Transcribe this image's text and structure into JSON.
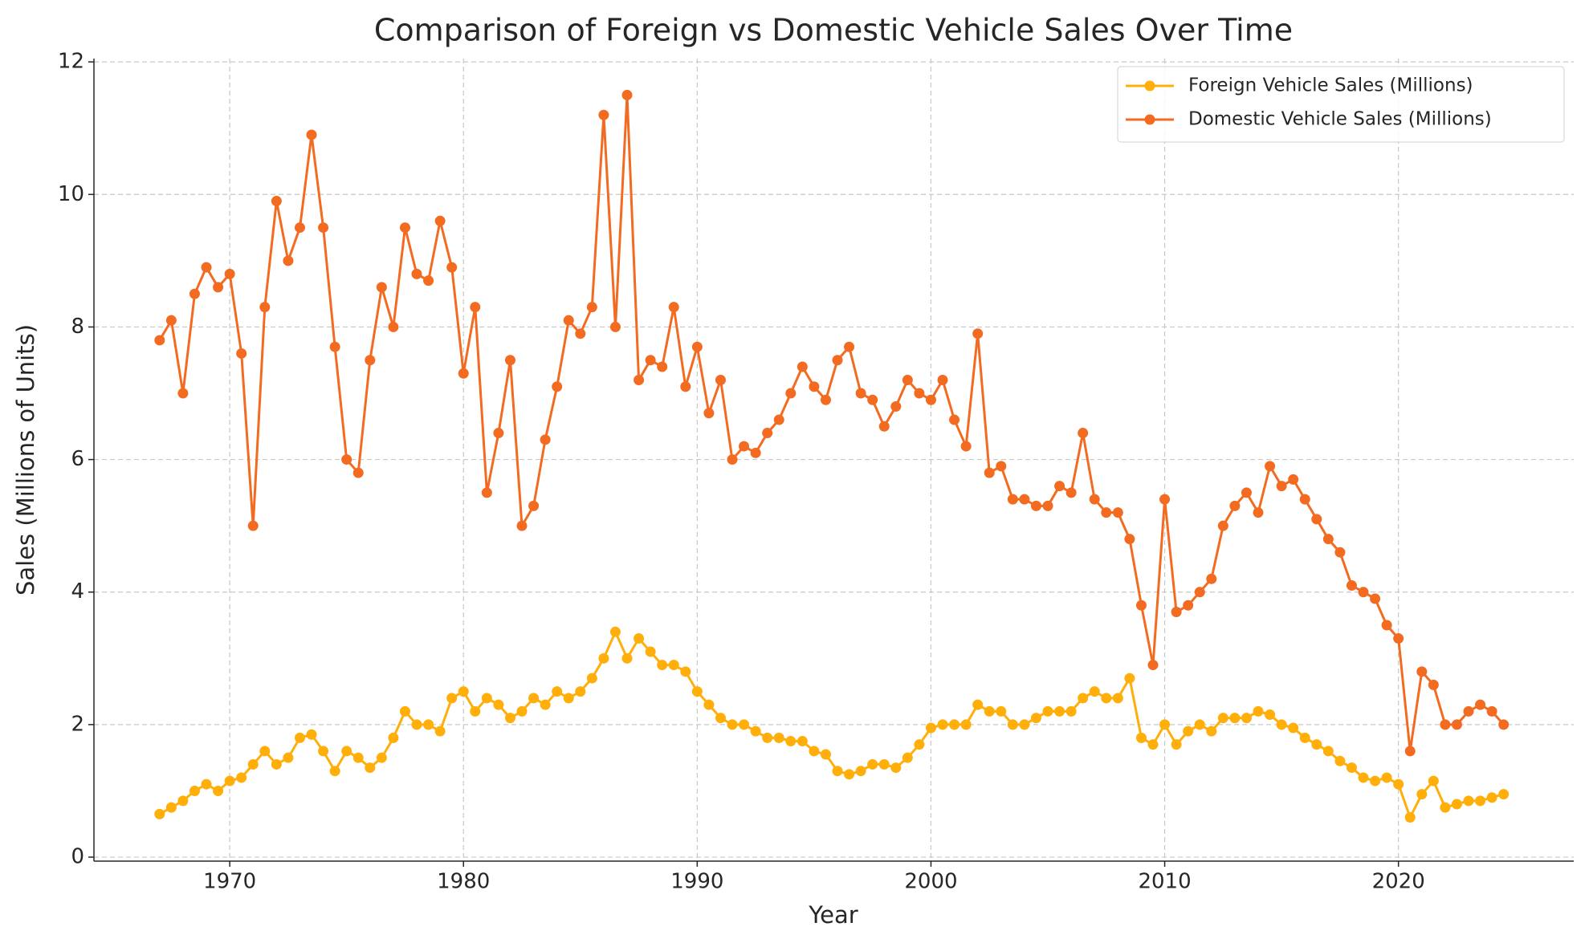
{
  "chart_data": {
    "type": "line",
    "title": "Comparison of Foreign vs Domestic Vehicle Sales Over Time",
    "x_label": "Year",
    "y_label": "Sales (Millions of Units)",
    "x": [
      1967,
      1967.5,
      1968,
      1968.5,
      1969,
      1969.5,
      1970,
      1970.5,
      1971,
      1971.5,
      1972,
      1972.5,
      1973,
      1973.5,
      1974,
      1974.5,
      1975,
      1975.5,
      1976,
      1976.5,
      1977,
      1977.5,
      1978,
      1978.5,
      1979,
      1979.5,
      1980,
      1980.5,
      1981,
      1981.5,
      1982,
      1982.5,
      1983,
      1983.5,
      1984,
      1984.5,
      1985,
      1985.5,
      1986,
      1986.5,
      1987,
      1987.5,
      1988,
      1988.5,
      1989,
      1989.5,
      1990,
      1990.5,
      1991,
      1991.5,
      1992,
      1992.5,
      1993,
      1993.5,
      1994,
      1994.5,
      1995,
      1995.5,
      1996,
      1996.5,
      1997,
      1997.5,
      1998,
      1998.5,
      1999,
      1999.5,
      2000,
      2000.5,
      2001,
      2001.5,
      2002,
      2002.5,
      2003,
      2003.5,
      2004,
      2004.5,
      2005,
      2005.5,
      2006,
      2006.5,
      2007,
      2007.5,
      2008,
      2008.5,
      2009,
      2009.5,
      2010,
      2010.5,
      2011,
      2011.5,
      2012,
      2012.5,
      2013,
      2013.5,
      2014,
      2014.5,
      2015,
      2015.5,
      2016,
      2016.5,
      2017,
      2017.5,
      2018,
      2018.5,
      2019,
      2019.5,
      2020,
      2020.5,
      2021,
      2021.5,
      2022,
      2022.5,
      2023,
      2023.5,
      2024,
      2024.5
    ],
    "series": [
      {
        "name": "Foreign Vehicle Sales (Millions)",
        "color": "#ffae0a",
        "values": [
          0.65,
          0.75,
          0.85,
          1.0,
          1.1,
          1.0,
          1.15,
          1.2,
          1.4,
          1.6,
          1.4,
          1.5,
          1.8,
          1.85,
          1.6,
          1.3,
          1.6,
          1.5,
          1.35,
          1.5,
          1.8,
          2.2,
          2.0,
          2.0,
          1.9,
          2.4,
          2.5,
          2.2,
          2.4,
          2.3,
          2.1,
          2.2,
          2.4,
          2.3,
          2.5,
          2.4,
          2.5,
          2.7,
          3.0,
          3.4,
          3.0,
          3.3,
          3.1,
          2.9,
          2.9,
          2.8,
          2.5,
          2.3,
          2.1,
          2.0,
          2.0,
          1.9,
          1.8,
          1.8,
          1.75,
          1.75,
          1.6,
          1.55,
          1.3,
          1.25,
          1.3,
          1.4,
          1.4,
          1.35,
          1.5,
          1.7,
          1.95,
          2.0,
          2.0,
          2.0,
          2.3,
          2.2,
          2.2,
          2.0,
          2.0,
          2.1,
          2.2,
          2.2,
          2.2,
          2.4,
          2.5,
          2.4,
          2.4,
          2.7,
          1.8,
          1.7,
          2.0,
          1.7,
          1.9,
          2.0,
          1.9,
          2.1,
          2.1,
          2.1,
          2.2,
          2.15,
          2.0,
          1.95,
          1.8,
          1.7,
          1.6,
          1.45,
          1.35,
          1.2,
          1.15,
          1.2,
          1.1,
          0.6,
          0.95,
          1.15,
          0.75,
          0.8,
          0.85,
          0.85,
          0.9,
          0.95
        ]
      },
      {
        "name": "Domestic Vehicle Sales (Millions)",
        "color": "#f26b21",
        "values": [
          7.8,
          8.1,
          7.0,
          8.5,
          8.9,
          8.6,
          8.8,
          7.6,
          5.0,
          8.3,
          9.9,
          9.0,
          9.5,
          10.9,
          9.5,
          7.7,
          6.0,
          5.8,
          7.5,
          8.6,
          8.0,
          9.5,
          8.8,
          8.7,
          9.6,
          8.9,
          7.3,
          8.3,
          5.5,
          6.4,
          7.5,
          5.0,
          5.3,
          6.3,
          7.1,
          8.1,
          7.9,
          8.3,
          11.2,
          8.0,
          11.5,
          7.2,
          7.5,
          7.4,
          8.3,
          7.1,
          7.7,
          6.7,
          7.2,
          6.0,
          6.2,
          6.1,
          6.4,
          6.6,
          7.0,
          7.4,
          7.1,
          6.9,
          7.5,
          7.7,
          7.0,
          6.9,
          6.5,
          6.8,
          7.2,
          7.0,
          6.9,
          7.2,
          6.6,
          6.2,
          7.9,
          5.8,
          5.9,
          5.4,
          5.4,
          5.3,
          5.3,
          5.6,
          5.5,
          6.4,
          5.4,
          5.2,
          5.2,
          4.8,
          3.8,
          2.9,
          5.4,
          3.7,
          3.8,
          4.0,
          4.2,
          5.0,
          5.3,
          5.5,
          5.2,
          5.9,
          5.6,
          5.7,
          5.4,
          5.1,
          4.8,
          4.6,
          4.1,
          4.0,
          3.9,
          3.5,
          3.3,
          1.6,
          2.8,
          2.6,
          2.0,
          2.0,
          2.2,
          2.3,
          2.2,
          2.0
        ]
      }
    ],
    "xlim": [
      1964.19,
      2027.5
    ],
    "ylim": [
      -0.06,
      12.05
    ],
    "xticks": [
      1970,
      1980,
      1990,
      2000,
      2010,
      2020
    ],
    "yticks": [
      0,
      2,
      4,
      6,
      8,
      10,
      12
    ],
    "grid": true,
    "legend": "upper right"
  }
}
